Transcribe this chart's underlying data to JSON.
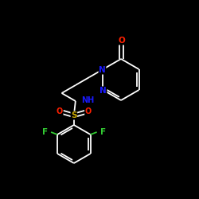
{
  "background_color": "#000000",
  "bond_color": "#ffffff",
  "atom_colors": {
    "N": "#1a1aff",
    "O": "#ff2000",
    "S": "#ccaa00",
    "F": "#33cc33",
    "C": "#ffffff"
  },
  "figsize": [
    2.5,
    2.5
  ],
  "dpi": 100
}
